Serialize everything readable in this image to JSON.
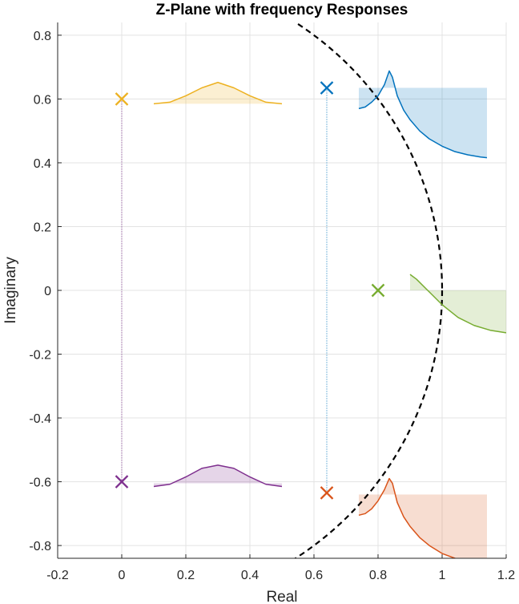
{
  "chart_data": {
    "type": "scatter",
    "title": "Z-Plane with frequency Responses",
    "xlabel": "Real",
    "ylabel": "Imaginary",
    "xlim": [
      -0.2,
      1.2
    ],
    "ylim": [
      -0.84,
      0.84
    ],
    "xticks": [
      "-0.2",
      "0",
      "0.2",
      "0.4",
      "0.6",
      "0.8",
      "1",
      "1.2"
    ],
    "xtick_values": [
      -0.2,
      0,
      0.2,
      0.4,
      0.6,
      0.8,
      1,
      1.2
    ],
    "yticks": [
      "0.8",
      "0.6",
      "0.4",
      "0.2",
      "0",
      "-0.2",
      "-0.4",
      "-0.6",
      "-0.8"
    ],
    "ytick_values": [
      0.8,
      0.6,
      0.4,
      0.2,
      0,
      -0.2,
      -0.4,
      -0.6,
      -0.8
    ],
    "grid": true,
    "unit_circle": {
      "radius": 1,
      "style": "dashed",
      "color": "#000000"
    },
    "poles": [
      {
        "x": 0.0,
        "y": 0.6,
        "color": "#EDB120"
      },
      {
        "x": 0.64,
        "y": 0.635,
        "color": "#0072BD"
      },
      {
        "x": 0.8,
        "y": 0.0,
        "color": "#77AC30"
      },
      {
        "x": 0.0,
        "y": -0.6,
        "color": "#7E2F8E"
      },
      {
        "x": 0.64,
        "y": -0.635,
        "color": "#D95319"
      }
    ],
    "guides": [
      {
        "x": 0.0,
        "y_from": -0.6,
        "y_to": 0.6,
        "color": "#7E2F8E"
      },
      {
        "x": 0.64,
        "y_from": -0.635,
        "y_to": 0.635,
        "color": "#0072BD"
      }
    ],
    "responses": [
      {
        "color": "#EDB120",
        "base": 0.585,
        "x": [
          0.1,
          0.15,
          0.2,
          0.25,
          0.3,
          0.35,
          0.4,
          0.45,
          0.5
        ],
        "y": [
          0.585,
          0.59,
          0.61,
          0.635,
          0.652,
          0.635,
          0.61,
          0.59,
          0.585
        ]
      },
      {
        "color": "#0072BD",
        "base": 0.635,
        "x": [
          0.74,
          0.76,
          0.78,
          0.8,
          0.82,
          0.835,
          0.845,
          0.86,
          0.88,
          0.9,
          0.93,
          0.96,
          1.0,
          1.04,
          1.08,
          1.12,
          1.14
        ],
        "y": [
          0.57,
          0.575,
          0.59,
          0.61,
          0.645,
          0.688,
          0.668,
          0.61,
          0.565,
          0.535,
          0.5,
          0.475,
          0.452,
          0.435,
          0.425,
          0.418,
          0.416
        ]
      },
      {
        "color": "#77AC30",
        "base": 0.0,
        "x": [
          0.9,
          0.92,
          0.95,
          1.0,
          1.05,
          1.1,
          1.15,
          1.2
        ],
        "y": [
          0.05,
          0.035,
          0.005,
          -0.045,
          -0.085,
          -0.11,
          -0.125,
          -0.133
        ]
      },
      {
        "color": "#7E2F8E",
        "base": -0.605,
        "x": [
          0.1,
          0.15,
          0.2,
          0.25,
          0.3,
          0.35,
          0.4,
          0.45,
          0.5
        ],
        "y": [
          -0.615,
          -0.608,
          -0.585,
          -0.558,
          -0.548,
          -0.558,
          -0.585,
          -0.608,
          -0.615
        ]
      },
      {
        "color": "#D95319",
        "base": -0.64,
        "x": [
          0.74,
          0.76,
          0.78,
          0.8,
          0.82,
          0.835,
          0.845,
          0.86,
          0.88,
          0.9,
          0.93,
          0.96,
          1.0,
          1.04,
          1.08,
          1.12,
          1.14
        ],
        "y": [
          -0.705,
          -0.7,
          -0.685,
          -0.66,
          -0.625,
          -0.59,
          -0.605,
          -0.665,
          -0.71,
          -0.74,
          -0.775,
          -0.8,
          -0.825,
          -0.84,
          -0.85,
          -0.855,
          -0.857
        ]
      }
    ]
  }
}
